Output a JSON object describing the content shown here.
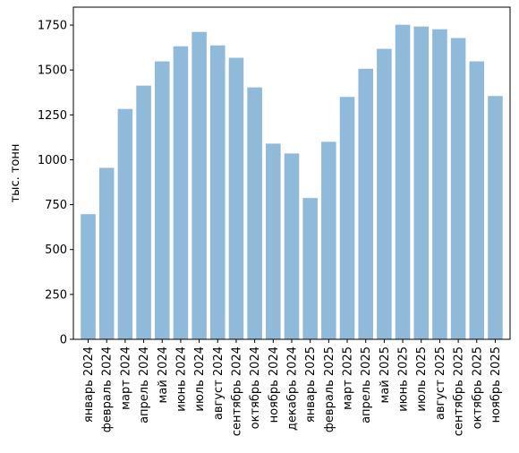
{
  "chart_data": {
    "type": "bar",
    "title": "",
    "xlabel": "",
    "ylabel": "тыс. тонн",
    "ylim": [
      0,
      1850
    ],
    "yticks": [
      0,
      250,
      500,
      750,
      1000,
      1250,
      1500,
      1750
    ],
    "ytick_labels": [
      "0",
      "250",
      "500",
      "750",
      "1000",
      "1250",
      "1500",
      "1750"
    ],
    "grid": false,
    "bar_color": "#8fbad9",
    "categories": [
      "январь 2024",
      "февраль 2024",
      "март 2024",
      "апрель 2024",
      "май 2024",
      "июнь 2024",
      "июль 2024",
      "август 2024",
      "сентябрь 2024",
      "октябрь 2024",
      "ноябрь 2024",
      "декабрь 2024",
      "январь 2025",
      "февраль 2025",
      "март 2025",
      "апрель 2025",
      "май 2025",
      "июнь 2025",
      "июль 2025",
      "август 2025",
      "сентябрь 2025",
      "октябрь 2025",
      "ноябрь 2025"
    ],
    "values": [
      697,
      955,
      1283,
      1413,
      1548,
      1632,
      1712,
      1637,
      1568,
      1403,
      1090,
      1035,
      787,
      1100,
      1350,
      1507,
      1618,
      1752,
      1742,
      1727,
      1678,
      1548,
      1355
    ]
  }
}
